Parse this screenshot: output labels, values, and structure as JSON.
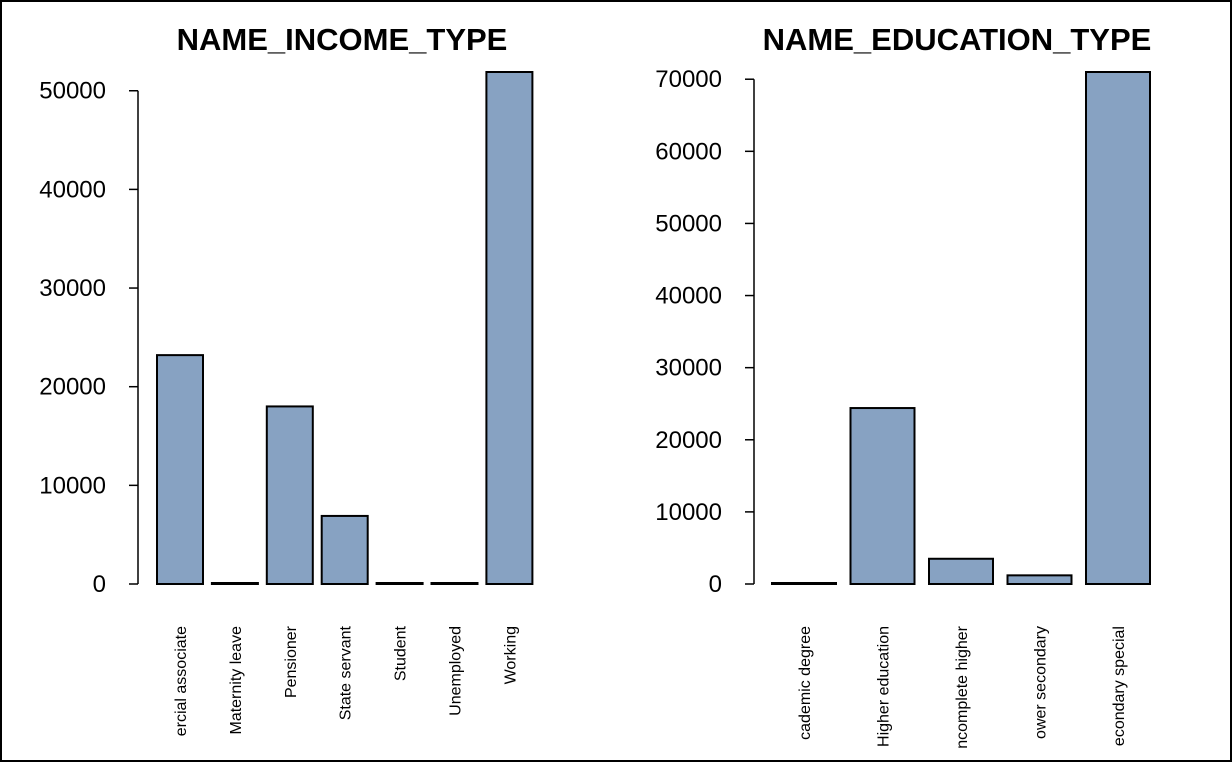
{
  "chart_data": [
    {
      "type": "bar",
      "title": "NAME_INCOME_TYPE",
      "categories": [
        "Commercial associate",
        "Maternity leave",
        "Pensioner",
        "State servant",
        "Student",
        "Unemployed",
        "Working"
      ],
      "category_labels_shown": [
        "ercial associate",
        "Maternity leave",
        "Pensioner",
        "State servant",
        "Student",
        "Unemployed",
        "Working"
      ],
      "values": [
        23200,
        5,
        18000,
        6900,
        5,
        10,
        51900
      ],
      "ylim": [
        0,
        51900
      ],
      "yticks": [
        0,
        10000,
        20000,
        30000,
        40000,
        50000
      ],
      "xlabel": "",
      "ylabel": "",
      "bar_color": "#87a2c2",
      "grid": false
    },
    {
      "type": "bar",
      "title": "NAME_EDUCATION_TYPE",
      "categories": [
        "Academic degree",
        "Higher education",
        "Incomplete higher",
        "Lower secondary",
        "Secondary / secondary special"
      ],
      "category_labels_shown": [
        "cademic degree",
        "Higher education",
        "ncomplete higher",
        "ower secondary",
        "econdary special"
      ],
      "values": [
        60,
        24400,
        3500,
        1200,
        71000
      ],
      "ylim": [
        0,
        71000
      ],
      "yticks": [
        0,
        10000,
        20000,
        30000,
        40000,
        50000,
        60000,
        70000
      ],
      "xlabel": "",
      "ylabel": "",
      "bar_color": "#87a2c2",
      "grid": false
    }
  ]
}
